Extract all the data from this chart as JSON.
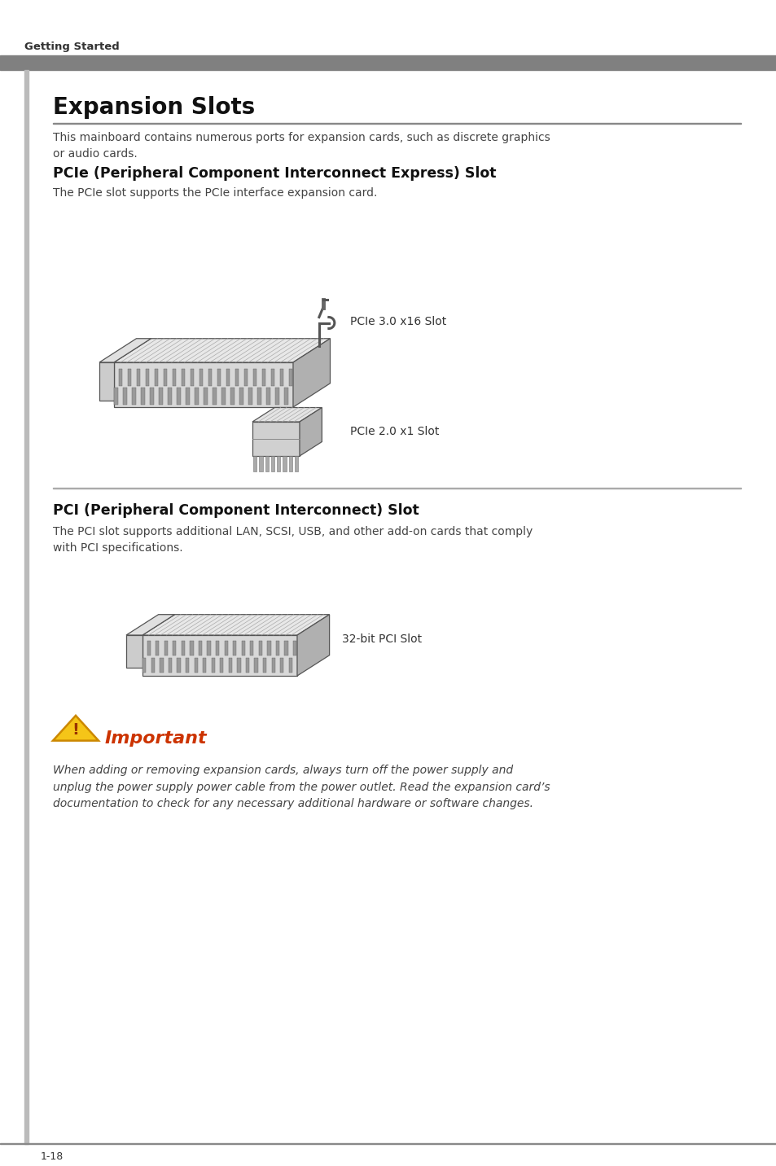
{
  "page_bg": "#ffffff",
  "header_strip_color": "#808080",
  "sidebar_color": "#aaaaaa",
  "header_text": "Getting Started",
  "main_title": "Expansion Slots",
  "section1_title": "PCIe (Peripheral Component Interconnect Express) Slot",
  "section1_intro": "This mainboard contains numerous ports for expansion cards, such as discrete graphics\nor audio cards.",
  "section1_body": "The PCIe slot supports the PCIe interface expansion card.",
  "pcie_label1": "PCIe 3.0 x16 Slot",
  "pcie_label2": "PCIe 2.0 x1 Slot",
  "section2_title": "PCI (Peripheral Component Interconnect) Slot",
  "section2_body": "The PCI slot supports additional LAN, SCSI, USB, and other add-on cards that comply\nwith PCI specifications.",
  "pci_label": "32-bit PCI Slot",
  "important_title": "Important",
  "important_body": "When adding or removing expansion cards, always turn off the power supply and\nunplug the power supply power cable from the power outlet. Read the expansion card’s\ndocumentation to check for any necessary additional hardware or software changes.",
  "footer_text": "1-18",
  "divider_color": "#aaaaaa",
  "text_color": "#333333",
  "body_color": "#444444",
  "slot_face_light": "#e0e0e0",
  "slot_face_mid": "#c8c8c8",
  "slot_face_dark": "#a0a0a0",
  "slot_edge": "#555555",
  "slot_hatch": "#888888"
}
